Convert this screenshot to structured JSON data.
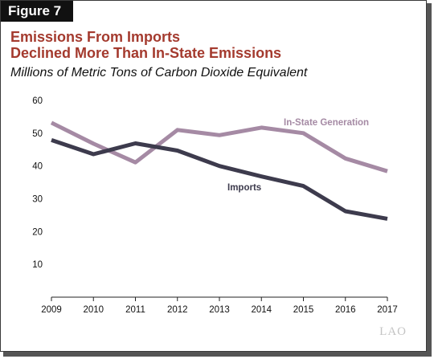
{
  "figure_label": "Figure 7",
  "title_line1": "Emissions From Imports",
  "title_line2": "Declined More Than In-State Emissions",
  "subtitle": "Millions of Metric Tons of Carbon Dioxide Equivalent",
  "logo_text": "LAO",
  "colors": {
    "title": "#a43a2e",
    "in_state": "#a58aa4",
    "imports": "#3d3b4d"
  },
  "chart_data": {
    "type": "line",
    "x": [
      2009,
      2010,
      2011,
      2012,
      2013,
      2014,
      2015,
      2016,
      2017
    ],
    "ylim": [
      0,
      60
    ],
    "yticks": [
      10,
      20,
      30,
      40,
      50,
      60
    ],
    "grid": false,
    "xlabel": "",
    "ylabel": "",
    "series": [
      {
        "name": "In-State Generation",
        "color": "#a58aa4",
        "values": [
          53.2,
          46.8,
          41.1,
          51.0,
          49.4,
          51.7,
          50.0,
          42.3,
          38.4
        ]
      },
      {
        "name": "Imports",
        "color": "#3d3b4d",
        "values": [
          47.9,
          43.6,
          46.9,
          44.7,
          40.0,
          36.8,
          33.9,
          26.2,
          23.9
        ]
      }
    ]
  }
}
